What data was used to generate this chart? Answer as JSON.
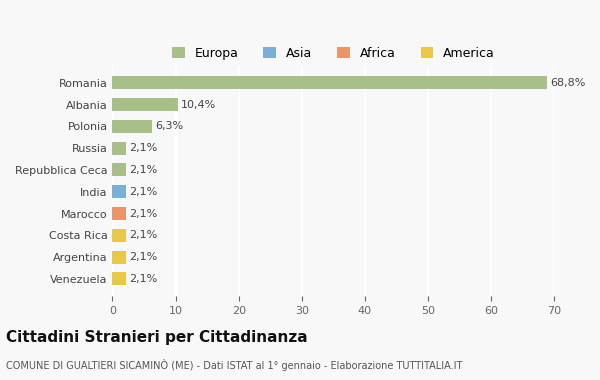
{
  "categories": [
    "Venezuela",
    "Argentina",
    "Costa Rica",
    "Marocco",
    "India",
    "Repubblica Ceca",
    "Russia",
    "Polonia",
    "Albania",
    "Romania"
  ],
  "values": [
    2.1,
    2.1,
    2.1,
    2.1,
    2.1,
    2.1,
    2.1,
    6.3,
    10.4,
    68.8
  ],
  "labels": [
    "2,1%",
    "2,1%",
    "2,1%",
    "2,1%",
    "2,1%",
    "2,1%",
    "2,1%",
    "6,3%",
    "10,4%",
    "68,8%"
  ],
  "colors": [
    "#e8c84a",
    "#e8c84a",
    "#e8c84a",
    "#e8956a",
    "#7bafd4",
    "#a8bf8a",
    "#a8bf8a",
    "#a8bf8a",
    "#a8bf8a",
    "#a8bf8a"
  ],
  "legend_labels": [
    "Europa",
    "Asia",
    "Africa",
    "America"
  ],
  "legend_colors": [
    "#a8bf8a",
    "#7bafd4",
    "#e8956a",
    "#e8c84a"
  ],
  "title": "Cittadini Stranieri per Cittadinanza",
  "subtitle": "COMUNE DI GUALTIERI SICAMINÒ (ME) - Dati ISTAT al 1° gennaio - Elaborazione TUTTITALIA.IT",
  "xlim": [
    0,
    70
  ],
  "xticks": [
    0,
    10,
    20,
    30,
    40,
    50,
    60,
    70
  ],
  "background_color": "#f8f8f8",
  "grid_color": "#ffffff",
  "bar_height": 0.6
}
